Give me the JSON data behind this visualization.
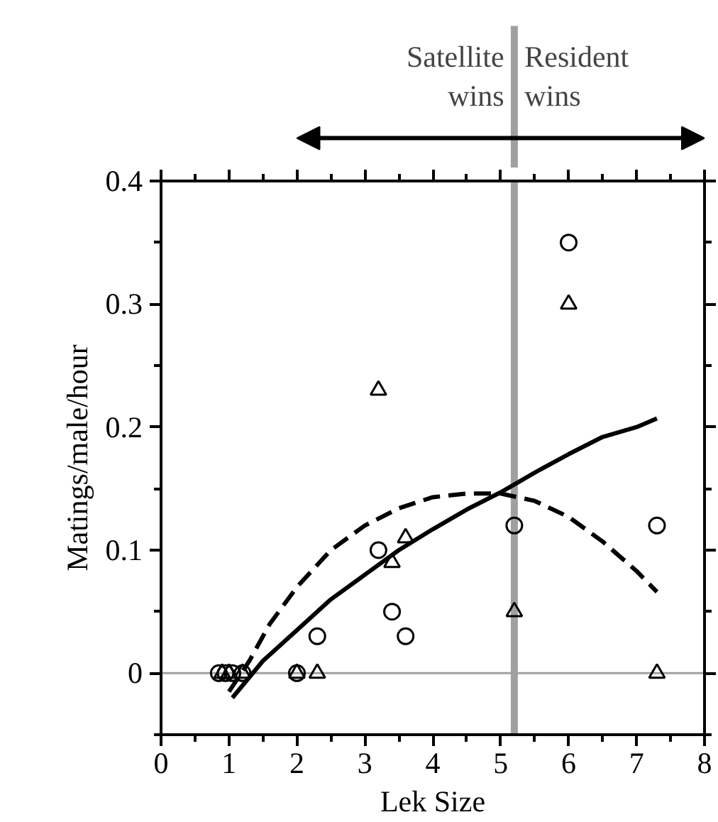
{
  "chart_data": {
    "type": "scatter",
    "xlabel": "Lek Size",
    "ylabel": "Matings/male/hour",
    "xlim": [
      0,
      8
    ],
    "xticks": [
      0,
      1,
      2,
      3,
      4,
      5,
      6,
      7,
      8
    ],
    "ylim": [
      -0.05,
      0.4
    ],
    "yticks": [
      0,
      0.1,
      0.2,
      0.3,
      0.4
    ],
    "grid": false,
    "series": [
      {
        "marker": "circle",
        "color": "#000000",
        "x": [
          0.85,
          0.95,
          1.05,
          1.2,
          2,
          2.3,
          3.2,
          3.4,
          3.6,
          5.2,
          6,
          7.3
        ],
        "values": [
          0,
          0,
          0,
          0,
          0,
          0.03,
          0.1,
          0.05,
          0.03,
          0.12,
          0.35,
          0.12
        ]
      },
      {
        "marker": "triangle",
        "color": "#000000",
        "x": [
          0.9,
          1.0,
          1.2,
          2,
          2.3,
          3.2,
          3.4,
          3.6,
          5.2,
          6,
          7.3
        ],
        "values": [
          0,
          0,
          0,
          0,
          0,
          0.23,
          0.09,
          0.11,
          0.05,
          0.3,
          0
        ]
      },
      {
        "type": "line",
        "line_style": "solid",
        "color": "#000000",
        "x": [
          1.05,
          1.5,
          2,
          2.5,
          3,
          3.5,
          4,
          4.5,
          5,
          5.5,
          6,
          6.5,
          7,
          7.3
        ],
        "values": [
          -0.02,
          0.01,
          0.035,
          0.06,
          0.08,
          0.1,
          0.117,
          0.133,
          0.147,
          0.163,
          0.178,
          0.192,
          0.2,
          0.207
        ]
      },
      {
        "type": "line",
        "line_style": "dashed",
        "color": "#000000",
        "x": [
          1.0,
          1.3,
          1.6,
          2,
          2.5,
          3,
          3.5,
          4,
          4.5,
          5,
          5.5,
          6,
          6.5,
          7,
          7.3
        ],
        "values": [
          -0.015,
          0.01,
          0.04,
          0.07,
          0.1,
          0.12,
          0.134,
          0.143,
          0.146,
          0.146,
          0.14,
          0.127,
          0.107,
          0.083,
          0.066
        ]
      }
    ],
    "ref_lines": [
      {
        "axis": "x",
        "value": 5.2,
        "color": "#a0a0a0"
      },
      {
        "axis": "y",
        "value": 0,
        "color": "#a0a0a0"
      }
    ],
    "annotations": [
      "Satellite\nwins",
      "Resident\nwins"
    ]
  }
}
